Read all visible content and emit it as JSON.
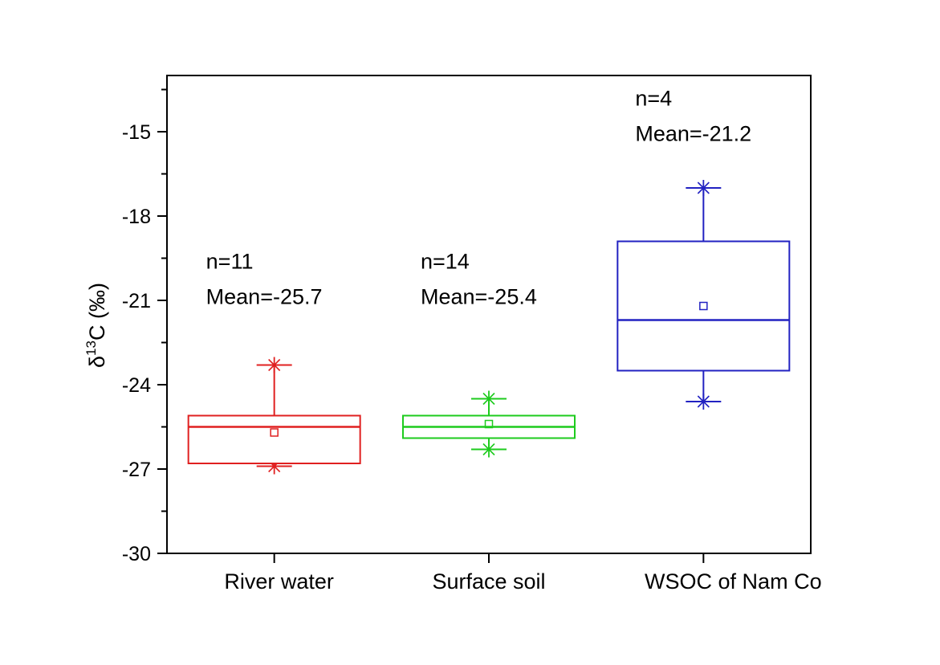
{
  "figure": {
    "background": "#ffffff",
    "frame_color": "#000000"
  },
  "chart_data": {
    "type": "box",
    "title": "",
    "xlabel": "",
    "ylabel": "δ13C (‰)",
    "ylabel_parts": {
      "base_pre": "δ",
      "superscript": "13",
      "base_post": "C (‰)"
    },
    "ylim": [
      -30,
      -13
    ],
    "yticks_major": [
      -15,
      -18,
      -21,
      -24,
      -27,
      -30
    ],
    "ytick_labels": [
      "-15",
      "-18",
      "-21",
      "-24",
      "-27",
      "-30"
    ],
    "yticks_minor": [
      -13.5,
      -16.5,
      -19.5,
      -22.5,
      -25.5,
      -28.5
    ],
    "grid": false,
    "legend": "none",
    "mean_marker": "open-square",
    "whisker_end_marker": "asterisk",
    "categories": [
      "River water",
      "Surface soil",
      "WSOC of Nam Co"
    ],
    "series": [
      {
        "label": "River water",
        "slug": "river-water",
        "color": "#e02020",
        "n": 11,
        "mean": -25.7,
        "median": -25.5,
        "q1": -26.8,
        "q3": -25.1,
        "whisker_low": -26.9,
        "whisker_high": -23.3,
        "annotation": {
          "line1": "n=11",
          "line2": "Mean=-25.7",
          "top_value": -19.3
        }
      },
      {
        "label": "Surface soil",
        "slug": "surface-soil",
        "color": "#1ecb1e",
        "n": 14,
        "mean": -25.4,
        "median": -25.5,
        "q1": -25.9,
        "q3": -25.1,
        "whisker_low": -26.3,
        "whisker_high": -24.5,
        "annotation": {
          "line1": "n=14",
          "line2": "Mean=-25.4",
          "top_value": -19.3
        }
      },
      {
        "label": "WSOC of Nam Co",
        "slug": "wsoc-of-nam-co",
        "color": "#2222c2",
        "n": 4,
        "mean": -21.2,
        "median": -21.7,
        "q1": -23.5,
        "q3": -18.9,
        "whisker_low": -24.6,
        "whisker_high": -17.0,
        "annotation": {
          "line1": "n=4",
          "line2": "Mean=-21.2",
          "top_value": -13.5
        }
      }
    ]
  }
}
